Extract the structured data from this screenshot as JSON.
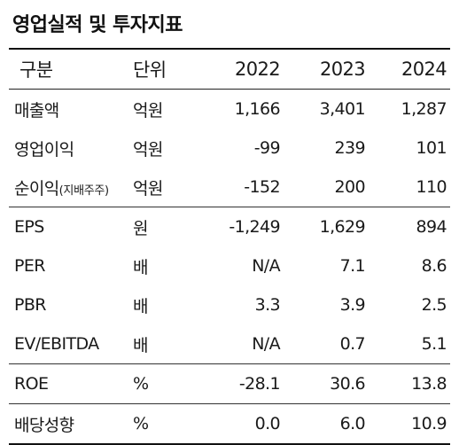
{
  "title": "영업실적 및 투자지표",
  "table": {
    "headers": {
      "item": "구분",
      "unit": "단위",
      "years": [
        "2022",
        "2023",
        "2024"
      ]
    },
    "rows": [
      {
        "item": "매출액",
        "item_note": "",
        "unit": "억원",
        "values": [
          "1,166",
          "3,401",
          "1,287"
        ]
      },
      {
        "item": "영업이익",
        "item_note": "",
        "unit": "억원",
        "values": [
          "-99",
          "239",
          "101"
        ]
      },
      {
        "item": "순이익",
        "item_note": "(지배주주)",
        "unit": "억원",
        "values": [
          "-152",
          "200",
          "110"
        ]
      },
      {
        "item": "EPS",
        "item_note": "",
        "unit": "원",
        "values": [
          "-1,249",
          "1,629",
          "894"
        ]
      },
      {
        "item": "PER",
        "item_note": "",
        "unit": "배",
        "values": [
          "N/A",
          "7.1",
          "8.6"
        ]
      },
      {
        "item": "PBR",
        "item_note": "",
        "unit": "배",
        "values": [
          "3.3",
          "3.9",
          "2.5"
        ]
      },
      {
        "item": "EV/EBITDA",
        "item_note": "",
        "unit": "배",
        "values": [
          "N/A",
          "0.7",
          "5.1"
        ]
      },
      {
        "item": "ROE",
        "item_note": "",
        "unit": "%",
        "values": [
          "-28.1",
          "30.6",
          "13.8"
        ]
      },
      {
        "item": "배당성향",
        "item_note": "",
        "unit": "%",
        "values": [
          "0.0",
          "6.0",
          "10.9"
        ]
      }
    ]
  }
}
